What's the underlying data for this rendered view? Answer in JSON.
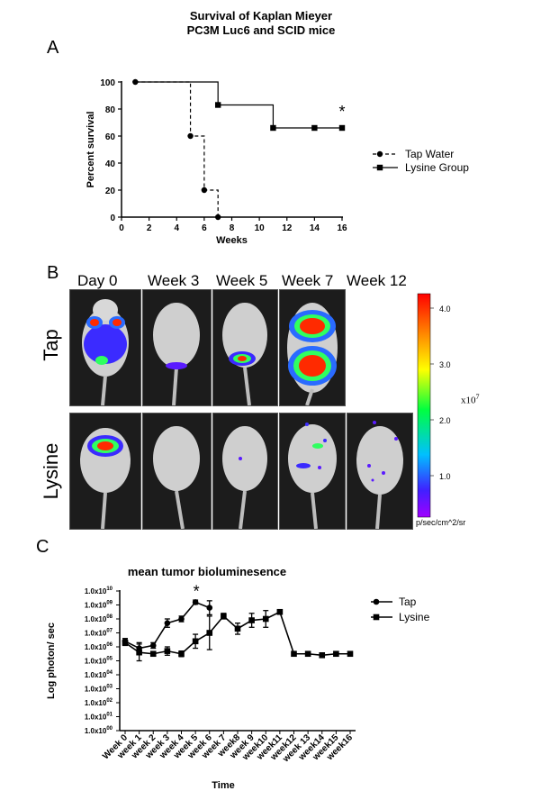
{
  "panel_a": {
    "letter": "A",
    "title_line1": "Survival of Kaplan Mieyer",
    "title_line2": "PC3M Luc6 and SCID mice",
    "significance_mark": "*"
  },
  "panel_b": {
    "letter": "B",
    "columns": [
      "Day 0",
      "Week 3",
      "Week 5",
      "Week 7",
      "Week 12"
    ],
    "rows": [
      "Tap",
      "Lysine"
    ],
    "colorbar": {
      "ticks": [
        "4.0",
        "3.0",
        "2.0",
        "1.0"
      ],
      "tick_values": [
        4.0,
        3.0,
        2.0,
        1.0
      ],
      "scale_base": "x10",
      "scale_exp": "7",
      "unit": "p/sec/cm^2/sr"
    }
  },
  "panel_c": {
    "letter": "C",
    "significance_mark": "*"
  },
  "colors": {
    "line": "#000000",
    "background": "#ffffff",
    "mouse_bg": "#1c1c1c"
  },
  "chart_data": [
    {
      "type": "line",
      "title": "Survival of Kaplan Mieyer PC3M Luc6 and SCID mice",
      "xlabel": "Weeks",
      "ylabel": "Percent survival",
      "xlim": [
        0,
        16
      ],
      "ylim": [
        0,
        100
      ],
      "xticks": [
        0,
        2,
        4,
        6,
        8,
        10,
        12,
        14,
        16
      ],
      "yticks": [
        0,
        20,
        40,
        60,
        80,
        100
      ],
      "step": true,
      "legend_position": "right",
      "series": [
        {
          "name": "Tap Water",
          "marker": "circle",
          "dashed": true,
          "x": [
            1,
            5,
            6,
            7
          ],
          "y": [
            100,
            60,
            20,
            0
          ]
        },
        {
          "name": "Lysine Group",
          "marker": "square",
          "dashed": false,
          "x": [
            7,
            11,
            14,
            16
          ],
          "y": [
            83,
            66,
            66,
            66
          ]
        }
      ]
    },
    {
      "type": "line",
      "title": "mean tumor bioluminesence",
      "xlabel": "Time",
      "ylabel": "Log photon/ sec",
      "yscale": "log",
      "ylim_exp": [
        0,
        10
      ],
      "ytick_base": "1.0x10",
      "yticks_exp": [
        0,
        1,
        2,
        3,
        4,
        5,
        6,
        7,
        8,
        9,
        10
      ],
      "categories": [
        "Week 0",
        "week 1",
        "week 2",
        "week 3",
        "week 4",
        "week 5",
        "week 6",
        "week 7",
        "week8",
        "week 9",
        "week10",
        "week11",
        "week12",
        "week 13",
        "week14",
        "week15",
        "week16"
      ],
      "legend_position": "right",
      "series": [
        {
          "name": "Tap",
          "marker": "circle",
          "values_exp": [
            6.4,
            5.9,
            6.1,
            7.7,
            8.0,
            9.2,
            8.8,
            null,
            null,
            null,
            null,
            null,
            null,
            null,
            null,
            null,
            null
          ],
          "err_exp": [
            0.2,
            0.4,
            0.2,
            0.3,
            0.2,
            0.15,
            0.5,
            null,
            null,
            null,
            null,
            null,
            null,
            null,
            null,
            null,
            null
          ]
        },
        {
          "name": "Lysine",
          "marker": "square",
          "values_exp": [
            6.3,
            5.6,
            5.5,
            5.7,
            5.5,
            6.4,
            7.0,
            8.2,
            7.3,
            7.9,
            8.0,
            8.5,
            5.5,
            5.5,
            5.4,
            5.5,
            5.5
          ],
          "err_exp": [
            0.2,
            0.6,
            0.1,
            0.3,
            0.2,
            0.5,
            1.2,
            0.2,
            0.4,
            0.5,
            0.6,
            0.1,
            0.1,
            0.1,
            0.1,
            0.1,
            0.1
          ]
        }
      ]
    }
  ]
}
